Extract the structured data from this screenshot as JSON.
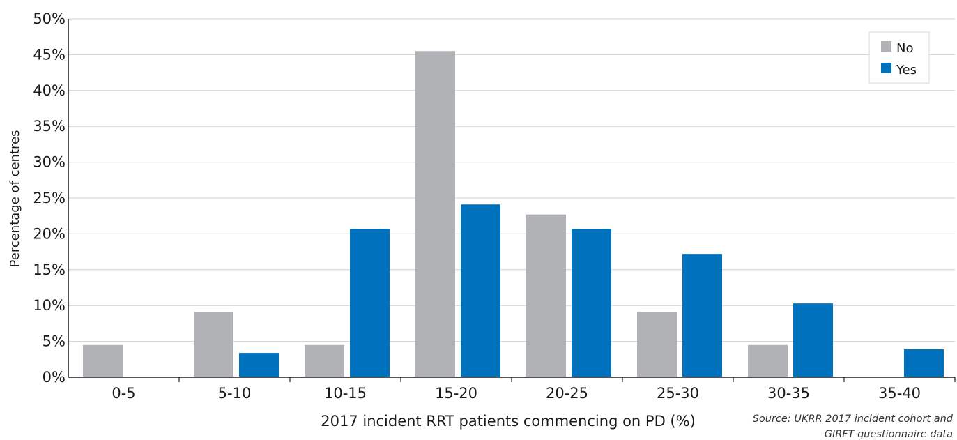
{
  "chart_data": {
    "type": "bar",
    "xlabel": "2017 incident RRT patients commencing on PD (%)",
    "ylabel": "Percentage of centres",
    "categories": [
      "0-5",
      "5-10",
      "10-15",
      "15-20",
      "20-25",
      "25-30",
      "30-35",
      "35-40"
    ],
    "series": [
      {
        "name": "No",
        "color": "#b1b2b6",
        "values": [
          4.5,
          9.1,
          4.5,
          45.5,
          22.7,
          9.1,
          4.5,
          0
        ]
      },
      {
        "name": "Yes",
        "color": "#0071bc",
        "values": [
          0,
          3.4,
          20.7,
          24.1,
          20.7,
          17.2,
          10.3,
          3.9
        ]
      }
    ],
    "ylim": [
      0,
      50
    ],
    "yticks": [
      0,
      5,
      10,
      15,
      20,
      25,
      30,
      35,
      40,
      45,
      50
    ],
    "ytick_labels": [
      "0%",
      "5%",
      "10%",
      "15%",
      "20%",
      "25%",
      "30%",
      "35%",
      "40%",
      "45%",
      "50%"
    ],
    "grid": true,
    "legend_position": "top-right",
    "source_lines": [
      "Source: UKRR 2017 incident cohort and",
      "GIRFT questionnaire data"
    ]
  }
}
